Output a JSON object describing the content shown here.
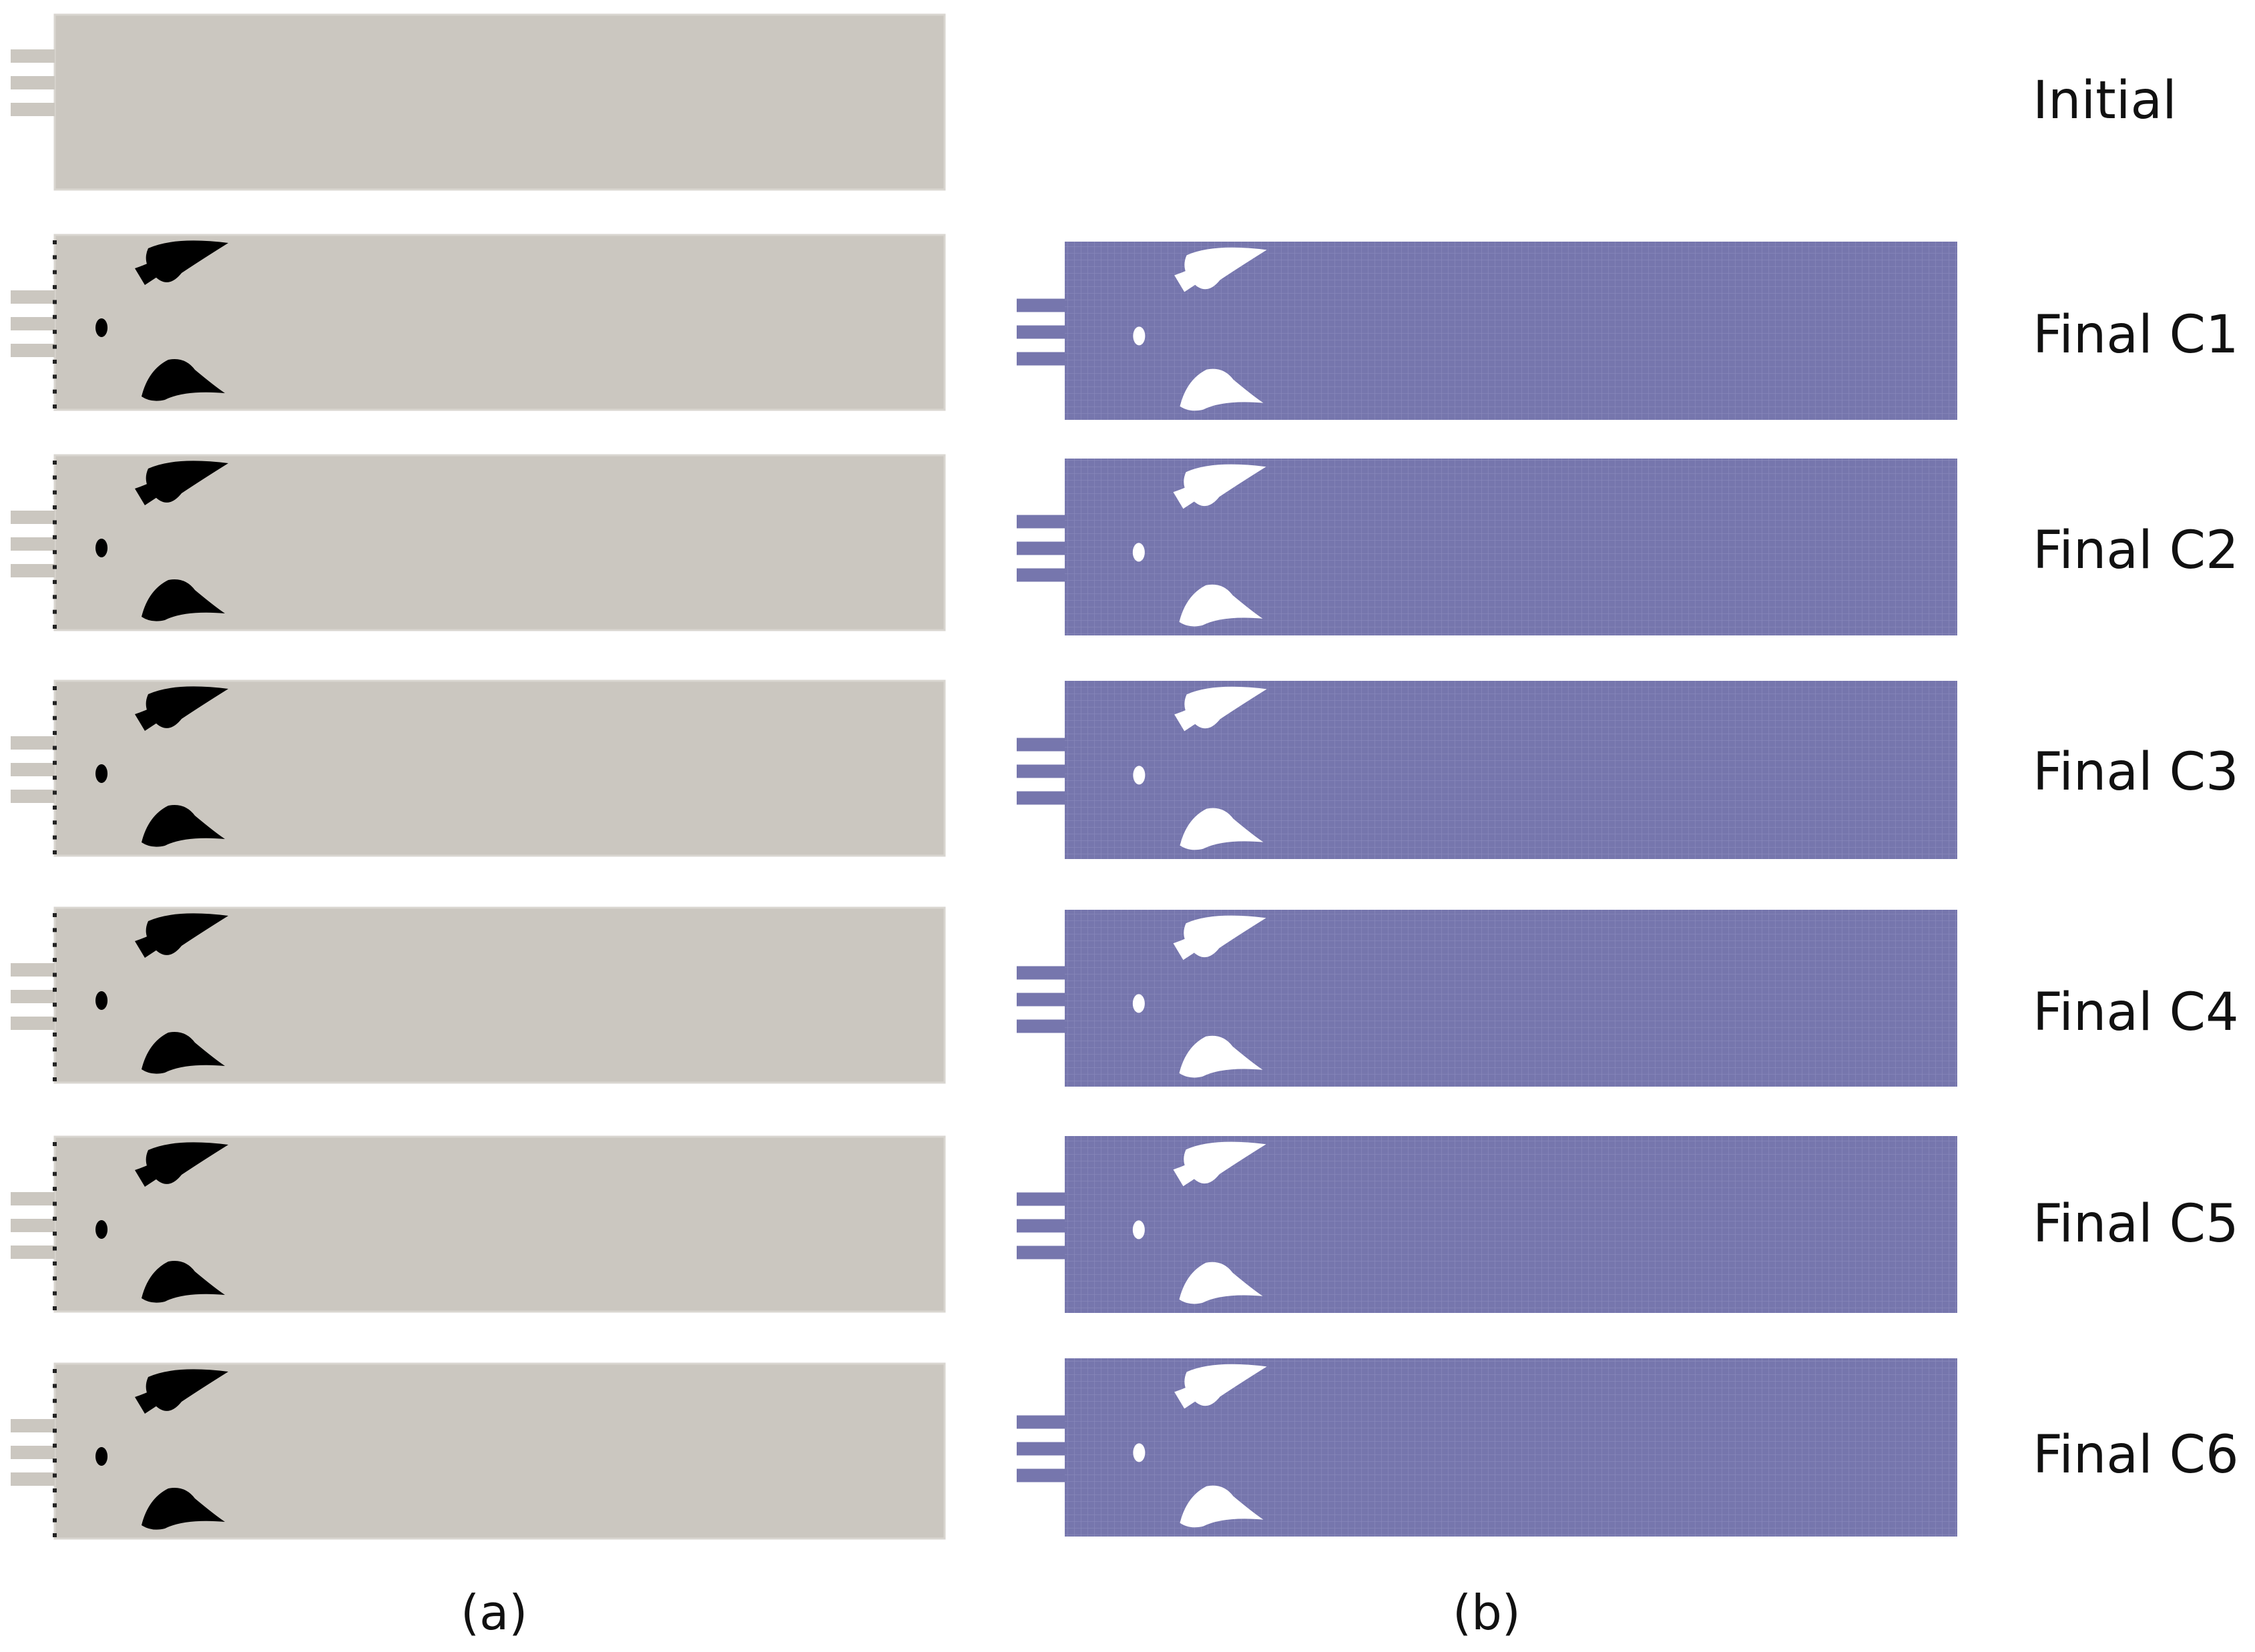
{
  "panels": {
    "a_label": "(a)",
    "b_label": "(b)"
  },
  "rows": [
    {
      "label": "Initial"
    },
    {
      "label": "Final C1"
    },
    {
      "label": "Final C2"
    },
    {
      "label": "Final C3"
    },
    {
      "label": "Final C4"
    },
    {
      "label": "Final C5"
    },
    {
      "label": "Final C6"
    }
  ],
  "colors": {
    "domain_gray": "#cbc7c0",
    "domain_blue": "#7676ad",
    "grid_line": "#8a8abb",
    "void": "#000000",
    "void_mesh": "#ffffff",
    "background": "#ffffff"
  }
}
